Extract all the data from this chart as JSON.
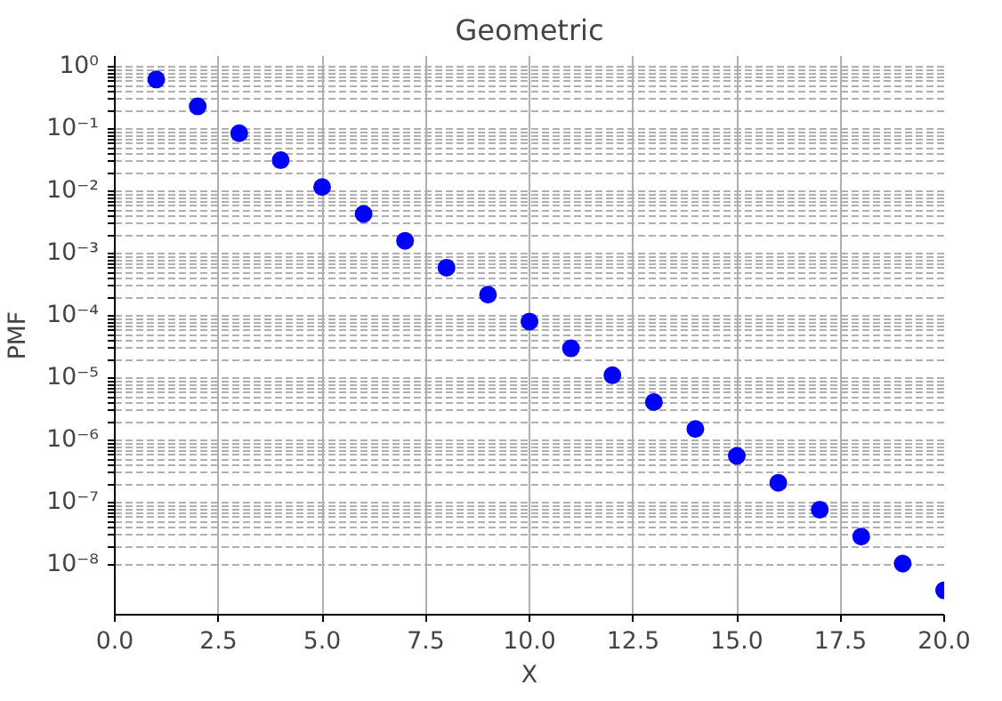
{
  "chart_data": {
    "type": "scatter",
    "title": "Geometric",
    "xlabel": "X",
    "ylabel": "PMF",
    "x": [
      1,
      2,
      3,
      4,
      5,
      6,
      7,
      8,
      9,
      10,
      11,
      12,
      13,
      14,
      15,
      16,
      17,
      18,
      19,
      20
    ],
    "series": [
      {
        "color": "#0000ff",
        "values": [
          0.63,
          0.233,
          0.0863,
          0.0319,
          0.0118,
          0.00437,
          0.00162,
          0.000598,
          0.000221,
          8.19e-05,
          3.03e-05,
          1.12e-05,
          4.15e-06,
          1.54e-06,
          5.68e-07,
          2.1e-07,
          7.78e-08,
          2.88e-08,
          1.06e-08,
          3.94e-09
        ]
      }
    ],
    "marker": "circle",
    "log": "y",
    "grid": true,
    "xlim": [
      0,
      20
    ],
    "xticks": [
      {
        "value": 0,
        "label": "0.0"
      },
      {
        "value": 2.5,
        "label": "2.5"
      },
      {
        "value": 5,
        "label": "5.0"
      },
      {
        "value": 7.5,
        "label": "7.5"
      },
      {
        "value": 10,
        "label": "10.0"
      },
      {
        "value": 12.5,
        "label": "12.5"
      },
      {
        "value": 15,
        "label": "15.0"
      },
      {
        "value": 17.5,
        "label": "17.5"
      },
      {
        "value": 20,
        "label": "20.0"
      }
    ],
    "ylim": [
      1.6e-09,
      1.5
    ],
    "yticks": [
      {
        "value": 1,
        "label": "10⁰"
      },
      {
        "value": 0.1,
        "label": "10⁻¹"
      },
      {
        "value": 0.01,
        "label": "10⁻²"
      },
      {
        "value": 0.001,
        "label": "10⁻³"
      },
      {
        "value": 0.0001,
        "label": "10⁻⁴"
      },
      {
        "value": 1e-05,
        "label": "10⁻⁵"
      },
      {
        "value": 1e-06,
        "label": "10⁻⁶"
      },
      {
        "value": 1e-07,
        "label": "10⁻⁷"
      },
      {
        "value": 1e-08,
        "label": "10⁻⁸"
      }
    ]
  }
}
